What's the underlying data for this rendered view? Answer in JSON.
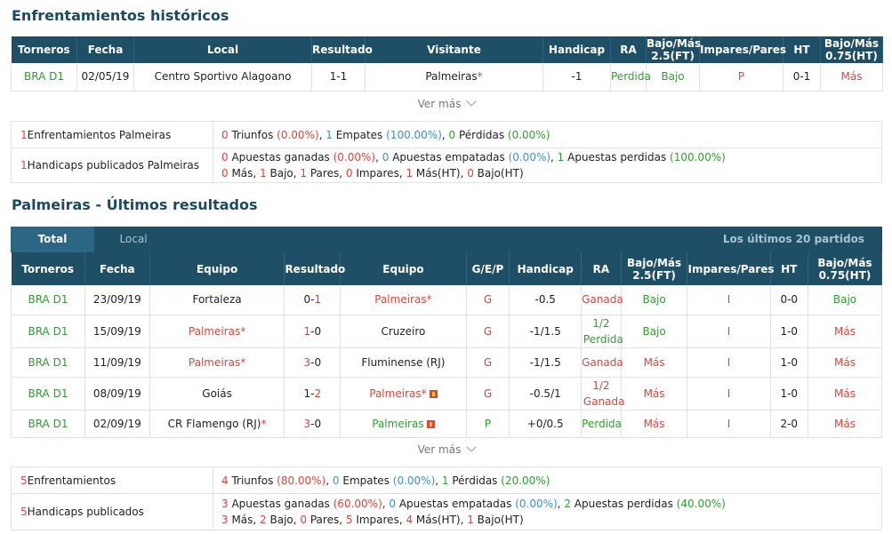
{
  "hist": {
    "title": "Enfrentamientos históricos",
    "headers": [
      "Torneros",
      "Fecha",
      "Local",
      "Resultado",
      "Visitante",
      "Handicap",
      "RA",
      "Bajo/Más 2.5(FT)",
      "Impares/Pares",
      "HT",
      "Bajo/Más 0.75(HT)"
    ],
    "row": {
      "torneo": "BRA D1",
      "fecha": "02/05/19",
      "local": "Centro Sportivo Alagoano",
      "res_home": "1",
      "res_sep": "-",
      "res_away": "1",
      "visitante": "Palmeiras",
      "star": "*",
      "handicap": "-1",
      "ra": "Perdida",
      "ou": "Bajo",
      "oe": "P",
      "ht": "0-1",
      "ou_ht": "Más"
    },
    "ver_mas": "Ver más",
    "summary": {
      "label1_num": "1",
      "label1": " Enfrentamientos Palmeiras",
      "wins": "0",
      "wins_lbl": " Triunfos ",
      "wins_pct": "(0.00%)",
      "draws": "1",
      "draws_lbl": " Empates ",
      "draws_pct": "(100.00%)",
      "losses": "0",
      "losses_lbl": " Pérdidas ",
      "losses_pct": "(0.00%)",
      "label2_num": "1",
      "label2": " Handicaps publicados Palmeiras",
      "ag": "0",
      "ag_lbl": " Apuestas ganadas ",
      "ag_pct": "(0.00%)",
      "ae": "0",
      "ae_lbl": " Apuestas empatadas ",
      "ae_pct": "(0.00%)",
      "ap": "1",
      "ap_lbl": " Apuestas perdidas ",
      "ap_pct": "(100.00%)",
      "mas": "0",
      "mas_lbl": " Más, ",
      "bajo": "1",
      "bajo_lbl": " Bajo, ",
      "pares": "1",
      "pares_lbl": " Pares, ",
      "imp": "0",
      "imp_lbl": " Impares, ",
      "masht": "1",
      "masht_lbl": " Más(HT), ",
      "bajoht": "0",
      "bajoht_lbl": " Bajo(HT)"
    }
  },
  "recent": {
    "title": "Palmeiras - Últimos resultados",
    "tabs": {
      "total": "Total",
      "local": "Local",
      "last": "Los últimos 20 partidos"
    },
    "headers": [
      "Torneros",
      "Fecha",
      "Equipo",
      "Resultado",
      "Equipo",
      "G/E/P",
      "Handicap",
      "RA",
      "Bajo/Más 2.5(FT)",
      "Impares/Pares",
      "HT",
      "Bajo/Más 0.75(HT)"
    ],
    "rows": [
      {
        "torneo": "BRA D1",
        "fecha": "23/09/19",
        "home": "Fortaleza",
        "home_star": "",
        "rh": "0",
        "ra": "1",
        "away": "Palmeiras",
        "away_star": "*",
        "away_badge": false,
        "gep": "G",
        "handicap": "-0.5",
        "ra_txt": "Ganada",
        "ou": "Bajo",
        "oe": "I",
        "ht": "0-0",
        "ouht": "Bajo"
      },
      {
        "torneo": "BRA D1",
        "fecha": "15/09/19",
        "home": "Palmeiras",
        "home_star": "*",
        "rh": "1",
        "ra": "0",
        "away": "Cruzeiro",
        "away_star": "",
        "away_badge": false,
        "gep": "G",
        "handicap": "-1/1.5",
        "ra_txt": "1/2 Perdida",
        "ou": "Bajo",
        "oe": "I",
        "ht": "1-0",
        "ouht": "Más"
      },
      {
        "torneo": "BRA D1",
        "fecha": "11/09/19",
        "home": "Palmeiras",
        "home_star": "*",
        "rh": "3",
        "ra": "0",
        "away": "Fluminense (RJ)",
        "away_star": "",
        "away_badge": false,
        "gep": "G",
        "handicap": "-1/1.5",
        "ra_txt": "Ganada",
        "ou": "Más",
        "oe": "I",
        "ht": "1-0",
        "ouht": "Más"
      },
      {
        "torneo": "BRA D1",
        "fecha": "08/09/19",
        "home": "Goiás",
        "home_star": "",
        "rh": "1",
        "ra": "2",
        "away": "Palmeiras",
        "away_star": "*",
        "away_badge": true,
        "gep": "G",
        "handicap": "-0.5/1",
        "ra_txt": "1/2 Ganada",
        "ou": "Más",
        "oe": "I",
        "ht": "1-0",
        "ouht": "Más"
      },
      {
        "torneo": "BRA D1",
        "fecha": "02/09/19",
        "home": "CR Flamengo (RJ)",
        "home_star": "*",
        "rh": "3",
        "ra": "0",
        "away": "Palmeiras",
        "away_star": "",
        "away_badge": true,
        "gep": "P",
        "handicap": "+0/0.5",
        "ra_txt": "Perdida",
        "ou": "Más",
        "oe": "I",
        "ht": "2-0",
        "ouht": "Más"
      }
    ],
    "ver_mas": "Ver más",
    "summary": {
      "label1_num": "5",
      "label1": " Enfrentamientos",
      "wins": "4",
      "wins_lbl": " Triunfos ",
      "wins_pct": "(80.00%)",
      "draws": "0",
      "draws_lbl": " Empates ",
      "draws_pct": "(0.00%)",
      "losses": "1",
      "losses_lbl": " Pérdidas ",
      "losses_pct": "(20.00%)",
      "label2_num": "5",
      "label2": " Handicaps publicados",
      "ag": "3",
      "ag_lbl": " Apuestas ganadas ",
      "ag_pct": "(60.00%)",
      "ae": "0",
      "ae_lbl": " Apuestas empatadas ",
      "ae_pct": "(0.00%)",
      "ap": "2",
      "ap_lbl": " Apuestas perdidas ",
      "ap_pct": "(40.00%)",
      "mas": "3",
      "mas_lbl": " Más, ",
      "bajo": "2",
      "bajo_lbl": " Bajo, ",
      "pares": "0",
      "pares_lbl": " Pares, ",
      "imp": "5",
      "imp_lbl": " Impares, ",
      "masht": "4",
      "masht_lbl": " Más(HT), ",
      "bajoht": "1",
      "bajoht_lbl": " Bajo(HT)"
    }
  },
  "colors": {
    "header_bg": "#1f4e67",
    "green": "#2f9e2f",
    "red": "#e0433a",
    "blue": "#3b8fd6"
  }
}
